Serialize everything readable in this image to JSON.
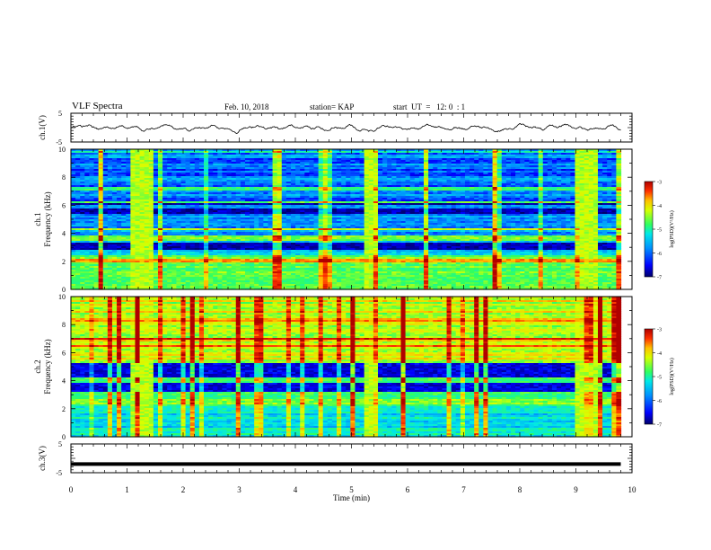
{
  "header": {
    "title": "VLF Spectra",
    "date": "Feb. 10, 2018",
    "station": "station= KAP",
    "start": "start  UT  =   12: 0  : 1"
  },
  "colors": {
    "trace": "#000000",
    "colormap": [
      "#00006a",
      "#0000ff",
      "#0090ff",
      "#00e8e8",
      "#30ff60",
      "#d8ff00",
      "#ffc000",
      "#ff3000",
      "#b00000"
    ]
  },
  "chart_data": [
    {
      "type": "line",
      "id": "ch1",
      "ylabel": "ch.1(V)",
      "ylim": [
        -5,
        5
      ],
      "yticks": [
        "5",
        "-5"
      ],
      "xlim": [
        0,
        10
      ],
      "description": "noisy waveform oscillating roughly between -1.5 and +1.5 V around 0 over 0 to 9.8 min"
    },
    {
      "type": "heatmap",
      "id": "ch1-spectrum",
      "ylabel_top": "ch.1",
      "ylabel": "Frequency (kHz)",
      "ylim": [
        0,
        10
      ],
      "yticks": [
        "0",
        "2",
        "4",
        "6",
        "8",
        "10"
      ],
      "xlim": [
        0,
        10
      ],
      "colorbar": {
        "label": "log(PSD)(V²/Hz)",
        "range": [
          -7,
          -3
        ],
        "ticks": [
          "-3",
          "-4",
          "-5",
          "-6",
          "-7"
        ]
      },
      "interference_bursts_min": [
        [
          1.1,
          1.5
        ],
        [
          5.2,
          5.5
        ],
        [
          9.0,
          9.4
        ]
      ]
    },
    {
      "type": "heatmap",
      "id": "ch2-spectrum",
      "ylabel_top": "ch.2",
      "ylabel": "Frequency (kHz)",
      "ylim": [
        0,
        10
      ],
      "yticks": [
        "0",
        "2",
        "4",
        "6",
        "8",
        "10"
      ],
      "xlim": [
        0,
        10
      ],
      "colorbar": {
        "label": "log(PSD)(V²/Hz)",
        "range": [
          -7,
          -3
        ],
        "ticks": [
          "-3",
          "-4",
          "-5",
          "-6",
          "-7"
        ]
      },
      "interference_bursts_min": [
        [
          1.1,
          1.5
        ],
        [
          5.2,
          5.5
        ],
        [
          9.0,
          9.4
        ]
      ]
    },
    {
      "type": "line",
      "id": "ch3",
      "ylabel": "ch.3(V)",
      "ylim": [
        -5,
        5
      ],
      "yticks": [
        "5",
        "-5"
      ],
      "xlim": [
        0,
        10
      ],
      "xlabel": "Time  (min)",
      "xticks": [
        "0",
        "1",
        "2",
        "3",
        "4",
        "5",
        "6",
        "7",
        "8",
        "9",
        "10"
      ],
      "x": [
        0,
        9.8
      ],
      "y": [
        -2,
        -2
      ]
    }
  ]
}
